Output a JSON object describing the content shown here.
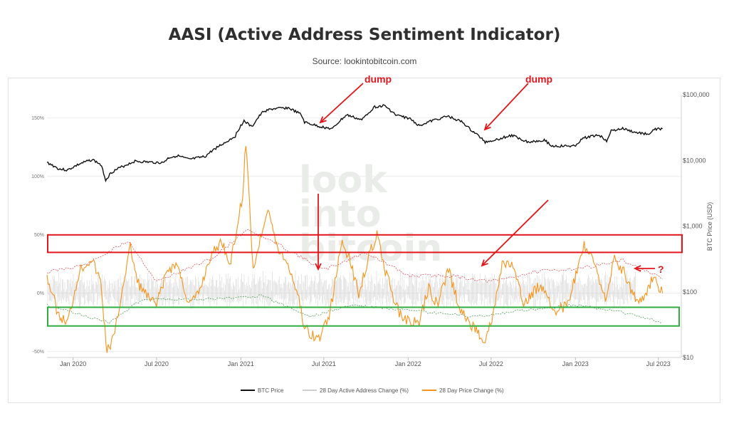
{
  "title": "AASI (Active Address Sentiment Indicator)",
  "source": "Source: lookintobitcoin.com",
  "watermark": [
    "look",
    "into",
    "bitcoin"
  ],
  "chart_data": {
    "type": "line",
    "x_tick_labels": [
      "Jan 2020",
      "Jul 2020",
      "Jan 2021",
      "Jul 2021",
      "Jan 2022",
      "Jul 2022",
      "Jan 2023",
      "Jul 2023"
    ],
    "x_ticks": [
      "2020-01-01",
      "2020-07-01",
      "2021-01-01",
      "2021-07-01",
      "2022-01-01",
      "2022-07-01",
      "2023-01-01",
      "2023-07-01"
    ],
    "xlim": [
      "2019-11-05",
      "2023-08-20"
    ],
    "left_axis": {
      "ylim": [
        -55,
        170
      ],
      "ticks": [
        -50,
        0,
        50,
        100,
        150
      ],
      "tick_labels": [
        "-50%",
        "0%",
        "50%",
        "100%",
        "150%"
      ]
    },
    "right_axis": {
      "label": "BTC Price (USD)",
      "scale": "log",
      "ylim": [
        10,
        100000
      ],
      "ticks": [
        10,
        100,
        1000,
        10000,
        100000
      ],
      "tick_labels": [
        "$10",
        "$100",
        "$1,000",
        "$10,000",
        "$100,000"
      ]
    },
    "legend": {
      "placement": "bottom",
      "items": [
        "BTC Price",
        "28 Day Active Address Change (%)",
        "28 Day Price Change (%)"
      ]
    },
    "colors": {
      "btc_price": "#111111",
      "address_change": "#cfcfcf",
      "price_change": "#f7931a",
      "upper_band": "#e0545a",
      "lower_band": "#4f9e5a",
      "red_box": "#e3161b",
      "green_box": "#2fae3f"
    },
    "series": [
      {
        "name": "BTC Price",
        "axis": "right",
        "points": [
          [
            "2019-11-05",
            9300
          ],
          [
            "2019-12-01",
            7400
          ],
          [
            "2019-12-20",
            7100
          ],
          [
            "2020-01-15",
            8800
          ],
          [
            "2020-02-12",
            10300
          ],
          [
            "2020-03-01",
            8600
          ],
          [
            "2020-03-12",
            5000
          ],
          [
            "2020-03-25",
            6600
          ],
          [
            "2020-04-30",
            8800
          ],
          [
            "2020-05-15",
            9700
          ],
          [
            "2020-06-15",
            9400
          ],
          [
            "2020-07-15",
            9200
          ],
          [
            "2020-07-28",
            11000
          ],
          [
            "2020-08-15",
            11800
          ],
          [
            "2020-09-10",
            10300
          ],
          [
            "2020-10-15",
            11400
          ],
          [
            "2020-11-05",
            15000
          ],
          [
            "2020-11-30",
            19000
          ],
          [
            "2020-12-20",
            23500
          ],
          [
            "2021-01-08",
            40000
          ],
          [
            "2021-01-25",
            32000
          ],
          [
            "2021-02-20",
            56000
          ],
          [
            "2021-03-13",
            61000
          ],
          [
            "2021-04-14",
            63000
          ],
          [
            "2021-05-12",
            50000
          ],
          [
            "2021-05-20",
            38000
          ],
          [
            "2021-06-20",
            33000
          ],
          [
            "2021-07-20",
            30000
          ],
          [
            "2021-08-20",
            49000
          ],
          [
            "2021-09-22",
            41000
          ],
          [
            "2021-10-20",
            65000
          ],
          [
            "2021-11-10",
            68000
          ],
          [
            "2021-12-05",
            49000
          ],
          [
            "2022-01-05",
            43000
          ],
          [
            "2022-01-24",
            34000
          ],
          [
            "2022-03-28",
            47000
          ],
          [
            "2022-04-30",
            38000
          ],
          [
            "2022-05-15",
            30000
          ],
          [
            "2022-06-18",
            19000
          ],
          [
            "2022-07-15",
            21000
          ],
          [
            "2022-08-15",
            24000
          ],
          [
            "2022-09-20",
            19000
          ],
          [
            "2022-10-25",
            20500
          ],
          [
            "2022-11-10",
            16500
          ],
          [
            "2022-12-30",
            16500
          ],
          [
            "2023-01-20",
            22000
          ],
          [
            "2023-02-20",
            24500
          ],
          [
            "2023-03-10",
            20000
          ],
          [
            "2023-03-20",
            28000
          ],
          [
            "2023-04-14",
            30500
          ],
          [
            "2023-05-12",
            26500
          ],
          [
            "2023-06-14",
            25000
          ],
          [
            "2023-06-22",
            30000
          ],
          [
            "2023-07-10",
            30300
          ]
        ]
      },
      {
        "name": "28 Day Price Change (%)",
        "axis": "left",
        "points": [
          [
            "2019-11-05",
            15
          ],
          [
            "2019-12-01",
            -20
          ],
          [
            "2019-12-20",
            -25
          ],
          [
            "2020-01-15",
            20
          ],
          [
            "2020-02-10",
            30
          ],
          [
            "2020-03-01",
            10
          ],
          [
            "2020-03-15",
            -50
          ],
          [
            "2020-04-01",
            -35
          ],
          [
            "2020-04-20",
            10
          ],
          [
            "2020-05-05",
            40
          ],
          [
            "2020-05-20",
            10
          ],
          [
            "2020-06-15",
            -5
          ],
          [
            "2020-07-01",
            -10
          ],
          [
            "2020-07-25",
            20
          ],
          [
            "2020-08-15",
            25
          ],
          [
            "2020-09-10",
            -10
          ],
          [
            "2020-10-01",
            0
          ],
          [
            "2020-10-25",
            30
          ],
          [
            "2020-11-20",
            45
          ],
          [
            "2020-12-10",
            25
          ],
          [
            "2021-01-05",
            85
          ],
          [
            "2021-01-12",
            130
          ],
          [
            "2021-01-28",
            20
          ],
          [
            "2021-02-20",
            60
          ],
          [
            "2021-03-01",
            75
          ],
          [
            "2021-03-20",
            40
          ],
          [
            "2021-04-14",
            25
          ],
          [
            "2021-05-05",
            0
          ],
          [
            "2021-05-20",
            -30
          ],
          [
            "2021-06-20",
            -40
          ],
          [
            "2021-07-15",
            -15
          ],
          [
            "2021-08-10",
            45
          ],
          [
            "2021-08-25",
            30
          ],
          [
            "2021-09-15",
            0
          ],
          [
            "2021-10-10",
            35
          ],
          [
            "2021-10-25",
            50
          ],
          [
            "2021-11-15",
            15
          ],
          [
            "2021-12-10",
            -15
          ],
          [
            "2022-01-05",
            -25
          ],
          [
            "2022-01-25",
            -25
          ],
          [
            "2022-02-15",
            5
          ],
          [
            "2022-03-05",
            -10
          ],
          [
            "2022-03-30",
            20
          ],
          [
            "2022-04-25",
            -15
          ],
          [
            "2022-05-15",
            -25
          ],
          [
            "2022-06-18",
            -40
          ],
          [
            "2022-07-05",
            -20
          ],
          [
            "2022-07-25",
            25
          ],
          [
            "2022-08-15",
            25
          ],
          [
            "2022-09-10",
            -10
          ],
          [
            "2022-10-10",
            5
          ],
          [
            "2022-10-25",
            5
          ],
          [
            "2022-11-15",
            -15
          ],
          [
            "2022-12-15",
            -10
          ],
          [
            "2023-01-20",
            40
          ],
          [
            "2023-02-05",
            30
          ],
          [
            "2023-03-10",
            -5
          ],
          [
            "2023-03-25",
            30
          ],
          [
            "2023-04-14",
            20
          ],
          [
            "2023-05-12",
            -5
          ],
          [
            "2023-06-01",
            -5
          ],
          [
            "2023-06-20",
            15
          ],
          [
            "2023-07-10",
            0
          ]
        ]
      }
    ],
    "bands": {
      "upper": [
        [
          "2019-11-05",
          18
        ],
        [
          "2020-02-01",
          25
        ],
        [
          "2020-05-01",
          45
        ],
        [
          "2020-07-01",
          10
        ],
        [
          "2020-11-01",
          30
        ],
        [
          "2021-01-15",
          55
        ],
        [
          "2021-04-01",
          40
        ],
        [
          "2021-07-01",
          20
        ],
        [
          "2021-10-01",
          35
        ],
        [
          "2022-01-01",
          15
        ],
        [
          "2022-04-01",
          15
        ],
        [
          "2022-07-01",
          10
        ],
        [
          "2022-10-01",
          18
        ],
        [
          "2023-01-20",
          22
        ],
        [
          "2023-04-15",
          28
        ],
        [
          "2023-07-10",
          12
        ]
      ],
      "lower": [
        [
          "2019-11-05",
          -10
        ],
        [
          "2020-03-20",
          -25
        ],
        [
          "2020-06-01",
          -5
        ],
        [
          "2020-11-01",
          -5
        ],
        [
          "2021-02-15",
          -2
        ],
        [
          "2021-06-01",
          -20
        ],
        [
          "2021-09-01",
          -10
        ],
        [
          "2022-01-01",
          -15
        ],
        [
          "2022-06-01",
          -20
        ],
        [
          "2022-09-01",
          -15
        ],
        [
          "2023-01-01",
          -10
        ],
        [
          "2023-04-01",
          -15
        ],
        [
          "2023-07-10",
          -25
        ]
      ]
    },
    "boxes": [
      {
        "color": "red",
        "ylim": [
          35,
          50
        ]
      },
      {
        "color": "green",
        "ylim": [
          -28,
          -12
        ]
      }
    ],
    "annotations": [
      "dump",
      "dump",
      "?"
    ]
  }
}
